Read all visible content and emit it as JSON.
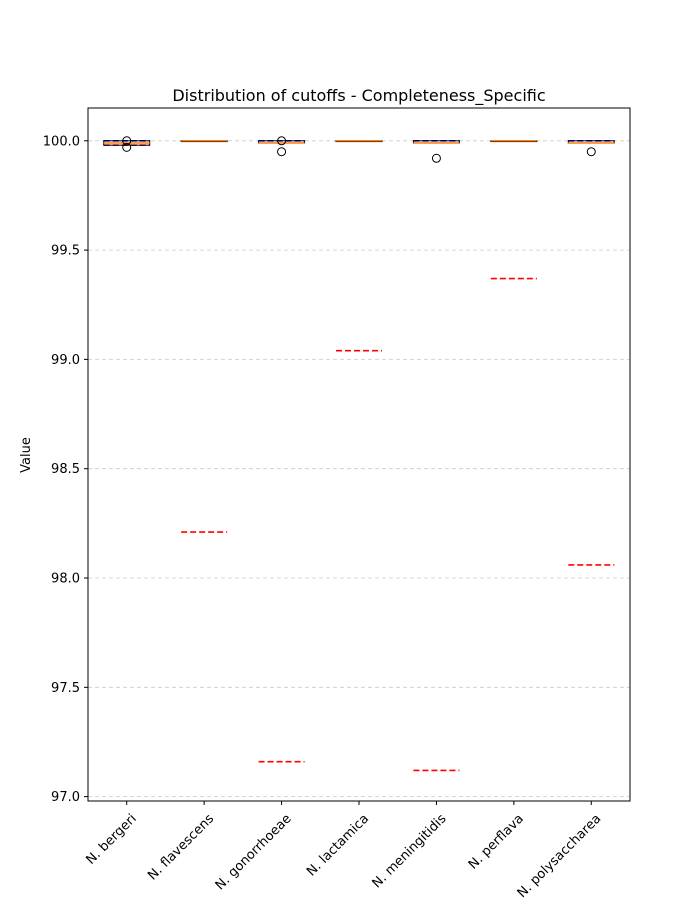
{
  "chart_data": {
    "type": "box",
    "title": "Distribution of cutoffs - Completeness_Specific",
    "xlabel": "",
    "ylabel": "Value",
    "ylim": [
      96.98,
      100.15
    ],
    "yticks": [
      97.0,
      97.5,
      98.0,
      98.5,
      99.0,
      99.5,
      100.0
    ],
    "ytick_labels": [
      "97.0",
      "97.5",
      "98.0",
      "98.5",
      "99.0",
      "99.5",
      "100.0"
    ],
    "grid": "horizontal-dashed",
    "categories": [
      "N. bergeri",
      "N. flavescens",
      "N. gonorrhoeae",
      "N. lactamica",
      "N. meningitidis",
      "N. perflava",
      "N. polysaccharea"
    ],
    "boxes": [
      {
        "category": "N. bergeri",
        "q1": 99.98,
        "median": 99.99,
        "q3": 100.0,
        "whisker_low": 99.98,
        "whisker_high": 100.0,
        "outliers": [
          99.97,
          100.0
        ]
      },
      {
        "category": "N. flavescens",
        "q1": 100.0,
        "median": 100.0,
        "q3": 100.0,
        "whisker_low": 100.0,
        "whisker_high": 100.0,
        "outliers": []
      },
      {
        "category": "N. gonorrhoeae",
        "q1": 99.99,
        "median": 99.99,
        "q3": 100.0,
        "whisker_low": 99.99,
        "whisker_high": 100.0,
        "outliers": [
          99.95,
          100.0
        ]
      },
      {
        "category": "N. lactamica",
        "q1": 100.0,
        "median": 100.0,
        "q3": 100.0,
        "whisker_low": 100.0,
        "whisker_high": 100.0,
        "outliers": []
      },
      {
        "category": "N. meningitidis",
        "q1": 99.99,
        "median": 99.99,
        "q3": 100.0,
        "whisker_low": 99.99,
        "whisker_high": 100.0,
        "outliers": [
          99.92
        ]
      },
      {
        "category": "N. perflava",
        "q1": 100.0,
        "median": 100.0,
        "q3": 100.0,
        "whisker_low": 100.0,
        "whisker_high": 100.0,
        "outliers": []
      },
      {
        "category": "N. polysaccharea",
        "q1": 99.99,
        "median": 99.99,
        "q3": 100.0,
        "whisker_low": 99.99,
        "whisker_high": 100.0,
        "outliers": [
          99.95
        ]
      }
    ],
    "reference_lines": {
      "style": "dashed",
      "blue": [
        100.0,
        100.0,
        100.0,
        100.0,
        100.0,
        100.0,
        100.0
      ],
      "red": [
        99.98,
        98.21,
        97.16,
        99.04,
        97.12,
        99.37,
        98.06
      ]
    },
    "colors": {
      "box_edge": "#000000",
      "median": "#ff7f0e",
      "blue_line": "#0000ff",
      "red_line": "#ff0000",
      "grid": "#cccccc"
    }
  }
}
